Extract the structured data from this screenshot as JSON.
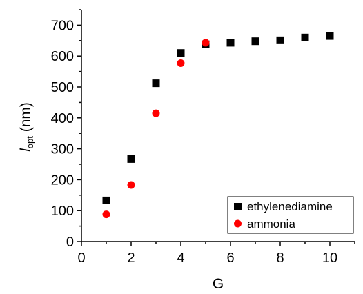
{
  "chart_data": {
    "type": "scatter",
    "xlabel": "G",
    "ylabel_main": "l",
    "ylabel_sub": "opt",
    "ylabel_unit": " (nm)",
    "xlim": [
      0,
      11
    ],
    "ylim": [
      0,
      750
    ],
    "x_ticks": [
      0,
      2,
      4,
      6,
      8,
      10
    ],
    "y_ticks": [
      0,
      100,
      200,
      300,
      400,
      500,
      600,
      700
    ],
    "grid": false,
    "legend_position": "bottom-right",
    "series": [
      {
        "name": "ethylenediamine",
        "marker": "square",
        "color": "#000000",
        "x": [
          1,
          2,
          3,
          4,
          5,
          6,
          7,
          8,
          9,
          10
        ],
        "y": [
          133,
          267,
          512,
          610,
          638,
          643,
          648,
          651,
          660,
          665
        ]
      },
      {
        "name": "ammonia",
        "marker": "circle",
        "color": "#ff0000",
        "x": [
          1,
          2,
          3,
          4,
          5
        ],
        "y": [
          88,
          183,
          415,
          577,
          643
        ]
      }
    ]
  }
}
